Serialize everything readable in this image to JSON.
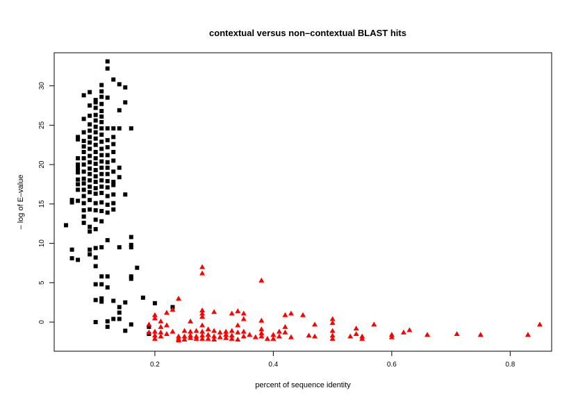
{
  "chart_data": {
    "type": "scatter",
    "title": "contextual versus non–contextual BLAST hits",
    "xlabel": "percent of sequence identity",
    "ylabel": "– log of E–value",
    "xlim": [
      0.03,
      0.87
    ],
    "ylim": [
      -3.7,
      34.2
    ],
    "x_ticks": [
      {
        "value": 0.2,
        "label": "0.2"
      },
      {
        "value": 0.4,
        "label": "0.4"
      },
      {
        "value": 0.6,
        "label": "0.6"
      },
      {
        "value": 0.8,
        "label": "0.8"
      }
    ],
    "y_ticks": [
      {
        "value": 0,
        "label": "0"
      },
      {
        "value": 5,
        "label": "5"
      },
      {
        "value": 10,
        "label": "10"
      },
      {
        "value": 15,
        "label": "15"
      },
      {
        "value": 20,
        "label": "20"
      },
      {
        "value": 25,
        "label": "25"
      },
      {
        "value": 30,
        "label": "30"
      }
    ],
    "grid": false,
    "series": [
      {
        "name": "contextual",
        "marker": "square",
        "color": "#000000",
        "points": [
          [
            0.05,
            12.3
          ],
          [
            0.06,
            15.2
          ],
          [
            0.06,
            15.5
          ],
          [
            0.06,
            9.2
          ],
          [
            0.06,
            8.1
          ],
          [
            0.07,
            7.9
          ],
          [
            0.07,
            15.4
          ],
          [
            0.07,
            16.8
          ],
          [
            0.07,
            17.5
          ],
          [
            0.07,
            18.1
          ],
          [
            0.07,
            19.0
          ],
          [
            0.07,
            19.5
          ],
          [
            0.07,
            20.0
          ],
          [
            0.07,
            20.8
          ],
          [
            0.07,
            23.2
          ],
          [
            0.07,
            23.5
          ],
          [
            0.08,
            12.6
          ],
          [
            0.08,
            13.4
          ],
          [
            0.08,
            14.2
          ],
          [
            0.08,
            15.1
          ],
          [
            0.08,
            16.0
          ],
          [
            0.08,
            16.8
          ],
          [
            0.08,
            17.6
          ],
          [
            0.08,
            18.2
          ],
          [
            0.08,
            19.1
          ],
          [
            0.08,
            20.0
          ],
          [
            0.08,
            20.8
          ],
          [
            0.08,
            21.6
          ],
          [
            0.08,
            22.3
          ],
          [
            0.08,
            23.0
          ],
          [
            0.08,
            24.1
          ],
          [
            0.08,
            25.8
          ],
          [
            0.08,
            28.8
          ],
          [
            0.09,
            8.6
          ],
          [
            0.09,
            9.2
          ],
          [
            0.09,
            11.5
          ],
          [
            0.09,
            12.1
          ],
          [
            0.09,
            14.3
          ],
          [
            0.09,
            15.5
          ],
          [
            0.09,
            16.5
          ],
          [
            0.09,
            17.2
          ],
          [
            0.09,
            18.0
          ],
          [
            0.09,
            18.8
          ],
          [
            0.09,
            19.5
          ],
          [
            0.09,
            20.3
          ],
          [
            0.09,
            21.1
          ],
          [
            0.09,
            22.0
          ],
          [
            0.09,
            22.8
          ],
          [
            0.09,
            23.5
          ],
          [
            0.09,
            24.3
          ],
          [
            0.09,
            25.1
          ],
          [
            0.09,
            26.2
          ],
          [
            0.09,
            27.5
          ],
          [
            0.09,
            29.2
          ],
          [
            0.1,
            0.0
          ],
          [
            0.1,
            2.8
          ],
          [
            0.1,
            4.8
          ],
          [
            0.1,
            7.1
          ],
          [
            0.1,
            8.2
          ],
          [
            0.1,
            9.4
          ],
          [
            0.1,
            11.8
          ],
          [
            0.1,
            13.0
          ],
          [
            0.1,
            14.2
          ],
          [
            0.1,
            15.1
          ],
          [
            0.1,
            16.3
          ],
          [
            0.1,
            17.0
          ],
          [
            0.1,
            17.8
          ],
          [
            0.1,
            18.5
          ],
          [
            0.1,
            19.3
          ],
          [
            0.1,
            20.1
          ],
          [
            0.1,
            20.8
          ],
          [
            0.1,
            21.6
          ],
          [
            0.1,
            22.5
          ],
          [
            0.1,
            23.3
          ],
          [
            0.1,
            24.1
          ],
          [
            0.1,
            24.8
          ],
          [
            0.1,
            25.6
          ],
          [
            0.1,
            26.3
          ],
          [
            0.1,
            27.2
          ],
          [
            0.1,
            27.9
          ],
          [
            0.1,
            28.2
          ],
          [
            0.11,
            2.6
          ],
          [
            0.11,
            3.0
          ],
          [
            0.11,
            4.8
          ],
          [
            0.11,
            5.8
          ],
          [
            0.11,
            9.5
          ],
          [
            0.11,
            12.8
          ],
          [
            0.11,
            14.1
          ],
          [
            0.11,
            15.2
          ],
          [
            0.11,
            16.4
          ],
          [
            0.11,
            17.2
          ],
          [
            0.11,
            18.0
          ],
          [
            0.11,
            18.8
          ],
          [
            0.11,
            19.6
          ],
          [
            0.11,
            20.4
          ],
          [
            0.11,
            21.2
          ],
          [
            0.11,
            22.0
          ],
          [
            0.11,
            22.9
          ],
          [
            0.11,
            23.8
          ],
          [
            0.11,
            24.6
          ],
          [
            0.11,
            25.4
          ],
          [
            0.11,
            26.1
          ],
          [
            0.11,
            26.8
          ],
          [
            0.11,
            27.7
          ],
          [
            0.11,
            28.6
          ],
          [
            0.11,
            29.3
          ],
          [
            0.11,
            30.1
          ],
          [
            0.12,
            -0.6
          ],
          [
            0.12,
            0.1
          ],
          [
            0.12,
            4.4
          ],
          [
            0.12,
            5.8
          ],
          [
            0.12,
            10.4
          ],
          [
            0.12,
            13.9
          ],
          [
            0.12,
            14.9
          ],
          [
            0.12,
            16.0
          ],
          [
            0.12,
            17.1
          ],
          [
            0.12,
            17.9
          ],
          [
            0.12,
            18.8
          ],
          [
            0.12,
            19.6
          ],
          [
            0.12,
            20.3
          ],
          [
            0.12,
            21.2
          ],
          [
            0.12,
            22.2
          ],
          [
            0.12,
            23.1
          ],
          [
            0.12,
            24.6
          ],
          [
            0.12,
            28.5
          ],
          [
            0.12,
            32.2
          ],
          [
            0.12,
            33.1
          ],
          [
            0.13,
            0.4
          ],
          [
            0.13,
            2.7
          ],
          [
            0.13,
            14.3
          ],
          [
            0.13,
            15.1
          ],
          [
            0.13,
            16.2
          ],
          [
            0.13,
            17.4
          ],
          [
            0.13,
            17.8
          ],
          [
            0.13,
            19.1
          ],
          [
            0.13,
            20.5
          ],
          [
            0.13,
            21.6
          ],
          [
            0.13,
            22.6
          ],
          [
            0.13,
            23.5
          ],
          [
            0.13,
            24.6
          ],
          [
            0.13,
            30.8
          ],
          [
            0.14,
            0.4
          ],
          [
            0.14,
            1.2
          ],
          [
            0.14,
            1.9
          ],
          [
            0.14,
            9.5
          ],
          [
            0.14,
            18.4
          ],
          [
            0.14,
            19.6
          ],
          [
            0.14,
            24.6
          ],
          [
            0.14,
            26.9
          ],
          [
            0.14,
            30.2
          ],
          [
            0.15,
            -1.1
          ],
          [
            0.15,
            2.5
          ],
          [
            0.15,
            16.2
          ],
          [
            0.15,
            27.9
          ],
          [
            0.15,
            29.8
          ],
          [
            0.16,
            -0.3
          ],
          [
            0.16,
            5.5
          ],
          [
            0.16,
            5.8
          ],
          [
            0.16,
            9.5
          ],
          [
            0.16,
            9.8
          ],
          [
            0.16,
            10.8
          ],
          [
            0.16,
            24.6
          ],
          [
            0.17,
            6.9
          ],
          [
            0.18,
            3.1
          ],
          [
            0.19,
            -0.6
          ],
          [
            0.19,
            -1.5
          ],
          [
            0.2,
            2.4
          ],
          [
            0.23,
            1.9
          ]
        ]
      },
      {
        "name": "non-contextual",
        "marker": "triangle",
        "color": "#ff0000",
        "points": [
          [
            0.19,
            -0.3
          ],
          [
            0.19,
            -1.3
          ],
          [
            0.2,
            0.9
          ],
          [
            0.2,
            0.5
          ],
          [
            0.2,
            -1.2
          ],
          [
            0.2,
            -1.7
          ],
          [
            0.2,
            -2.1
          ],
          [
            0.21,
            0.1
          ],
          [
            0.21,
            -0.6
          ],
          [
            0.21,
            -1.3
          ],
          [
            0.21,
            -1.8
          ],
          [
            0.22,
            1.2
          ],
          [
            0.22,
            -0.4
          ],
          [
            0.22,
            -1.5
          ],
          [
            0.23,
            1.6
          ],
          [
            0.23,
            -1.2
          ],
          [
            0.24,
            3.0
          ],
          [
            0.24,
            -1.8
          ],
          [
            0.24,
            -2.1
          ],
          [
            0.24,
            -2.3
          ],
          [
            0.25,
            -1.1
          ],
          [
            0.25,
            -1.8
          ],
          [
            0.25,
            -2.2
          ],
          [
            0.26,
            0.1
          ],
          [
            0.26,
            -1.2
          ],
          [
            0.26,
            -1.7
          ],
          [
            0.26,
            -2.0
          ],
          [
            0.27,
            -1.1
          ],
          [
            0.27,
            -1.8
          ],
          [
            0.27,
            -2.1
          ],
          [
            0.28,
            7.0
          ],
          [
            0.28,
            6.2
          ],
          [
            0.28,
            1.5
          ],
          [
            0.28,
            1.1
          ],
          [
            0.28,
            0.7
          ],
          [
            0.28,
            -0.4
          ],
          [
            0.28,
            -1.2
          ],
          [
            0.28,
            -1.7
          ],
          [
            0.28,
            -2.1
          ],
          [
            0.29,
            -0.9
          ],
          [
            0.29,
            -1.6
          ],
          [
            0.29,
            -2.1
          ],
          [
            0.3,
            1.3
          ],
          [
            0.3,
            -1.1
          ],
          [
            0.3,
            -1.8
          ],
          [
            0.3,
            -2.2
          ],
          [
            0.31,
            -1.3
          ],
          [
            0.31,
            -1.9
          ],
          [
            0.32,
            -1.2
          ],
          [
            0.32,
            -1.6
          ],
          [
            0.32,
            -2.0
          ],
          [
            0.33,
            1.1
          ],
          [
            0.33,
            -1.1
          ],
          [
            0.33,
            -1.7
          ],
          [
            0.33,
            -2.1
          ],
          [
            0.34,
            1.4
          ],
          [
            0.34,
            -0.4
          ],
          [
            0.34,
            -1.3
          ],
          [
            0.34,
            -2.2
          ],
          [
            0.35,
            1.1
          ],
          [
            0.35,
            0.4
          ],
          [
            0.35,
            -1.2
          ],
          [
            0.35,
            -1.8
          ],
          [
            0.36,
            -1.6
          ],
          [
            0.37,
            -1.9
          ],
          [
            0.38,
            5.3
          ],
          [
            0.38,
            0.2
          ],
          [
            0.38,
            -0.9
          ],
          [
            0.38,
            -1.4
          ],
          [
            0.38,
            -1.8
          ],
          [
            0.39,
            -2.1
          ],
          [
            0.4,
            -1.6
          ],
          [
            0.4,
            -2.1
          ],
          [
            0.41,
            -1.2
          ],
          [
            0.41,
            -1.8
          ],
          [
            0.42,
            0.9
          ],
          [
            0.42,
            -0.6
          ],
          [
            0.42,
            -1.3
          ],
          [
            0.43,
            1.1
          ],
          [
            0.43,
            -1.9
          ],
          [
            0.45,
            0.9
          ],
          [
            0.46,
            -1.7
          ],
          [
            0.47,
            -0.3
          ],
          [
            0.47,
            -1.8
          ],
          [
            0.5,
            0.4
          ],
          [
            0.5,
            -0.1
          ],
          [
            0.5,
            -1.1
          ],
          [
            0.5,
            -1.7
          ],
          [
            0.5,
            -2.1
          ],
          [
            0.53,
            -1.8
          ],
          [
            0.54,
            -0.8
          ],
          [
            0.54,
            -1.5
          ],
          [
            0.55,
            -1.8
          ],
          [
            0.55,
            -2.1
          ],
          [
            0.57,
            -0.3
          ],
          [
            0.6,
            -1.6
          ],
          [
            0.6,
            -1.9
          ],
          [
            0.62,
            -1.3
          ],
          [
            0.63,
            -1.0
          ],
          [
            0.66,
            -1.6
          ],
          [
            0.71,
            -1.5
          ],
          [
            0.75,
            -1.6
          ],
          [
            0.83,
            -1.6
          ],
          [
            0.85,
            -0.3
          ]
        ]
      }
    ]
  }
}
